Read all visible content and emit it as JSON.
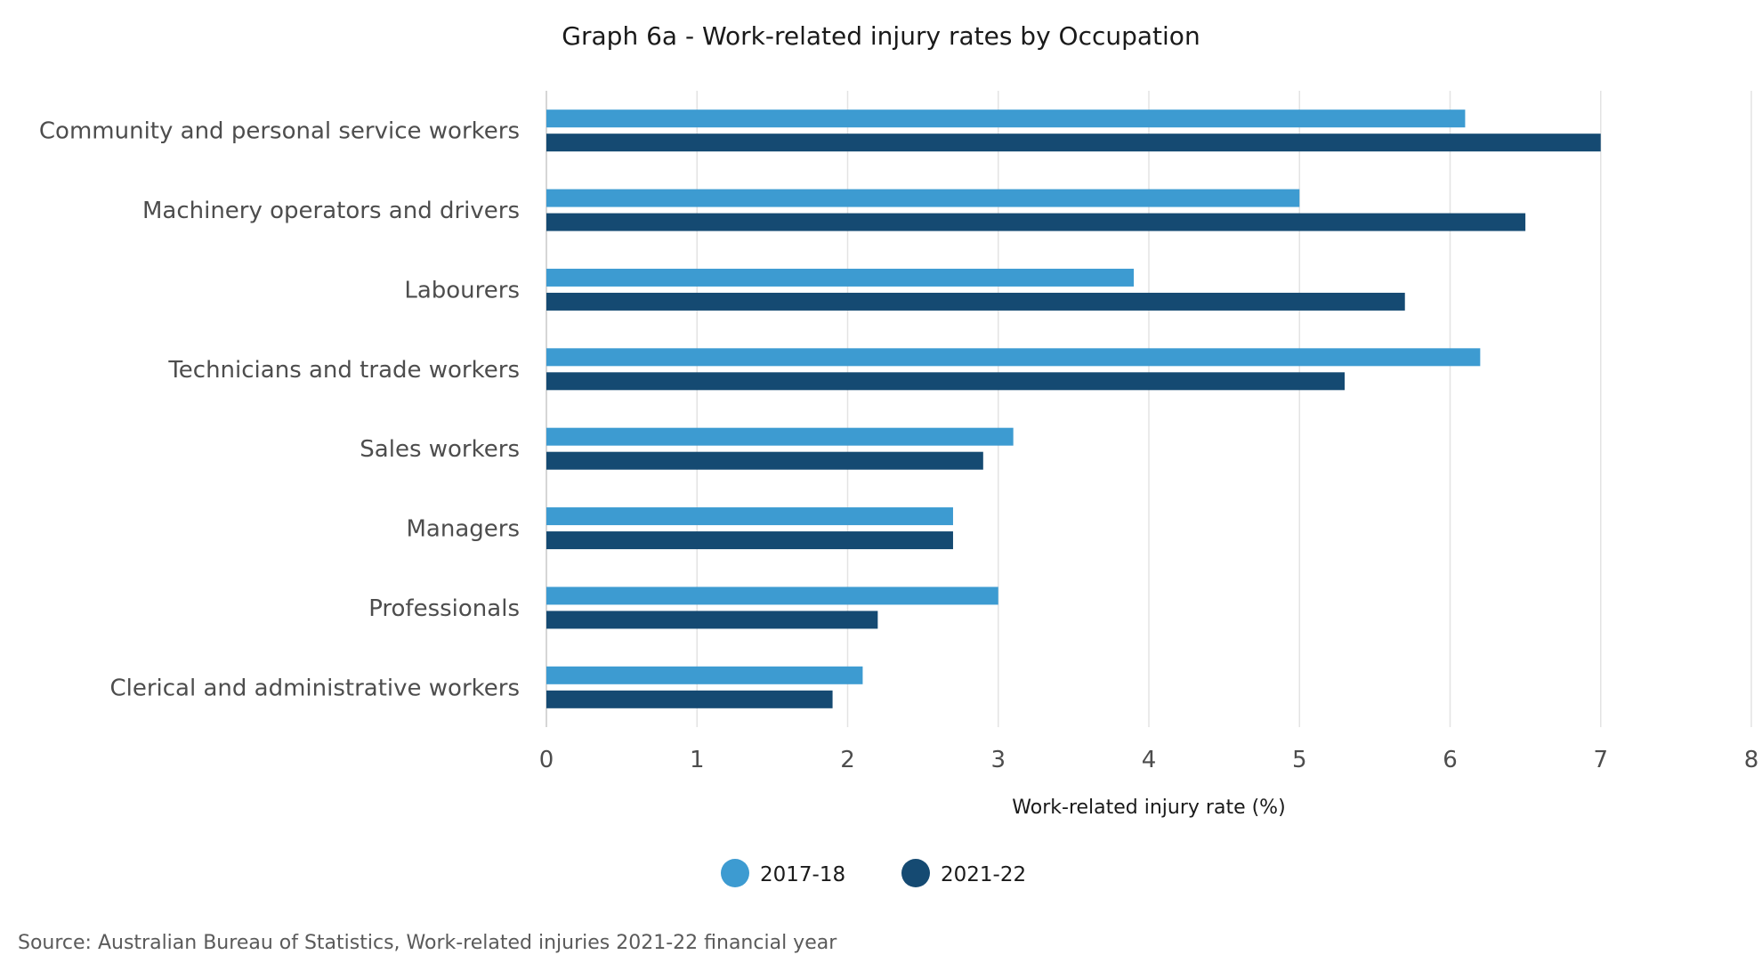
{
  "chart_data": {
    "type": "bar",
    "orientation": "horizontal",
    "title": "Graph 6a - Work-related injury rates by Occupation",
    "xlabel": "Work-related injury rate (%)",
    "ylabel": "",
    "categories": [
      "Community and personal service workers",
      "Machinery operators and drivers",
      "Labourers",
      "Technicians and trade workers",
      "Sales workers",
      "Managers",
      "Professionals",
      "Clerical and administrative workers"
    ],
    "series": [
      {
        "name": "2017-18",
        "color": "#3d9bd1",
        "values": [
          6.1,
          5.0,
          3.9,
          6.2,
          3.1,
          2.7,
          3.0,
          2.1
        ]
      },
      {
        "name": "2021-22",
        "color": "#154a72",
        "values": [
          7.0,
          6.5,
          5.7,
          5.3,
          2.9,
          2.7,
          2.2,
          1.9
        ]
      }
    ],
    "xlim": [
      0,
      8
    ],
    "xticks": [
      "0",
      "1",
      "2",
      "3",
      "4",
      "5",
      "6",
      "7",
      "8"
    ],
    "grid": "vertical",
    "legend_position": "bottom-center",
    "source": "Source: Australian Bureau of Statistics, Work-related injuries 2021-22 financial year"
  }
}
